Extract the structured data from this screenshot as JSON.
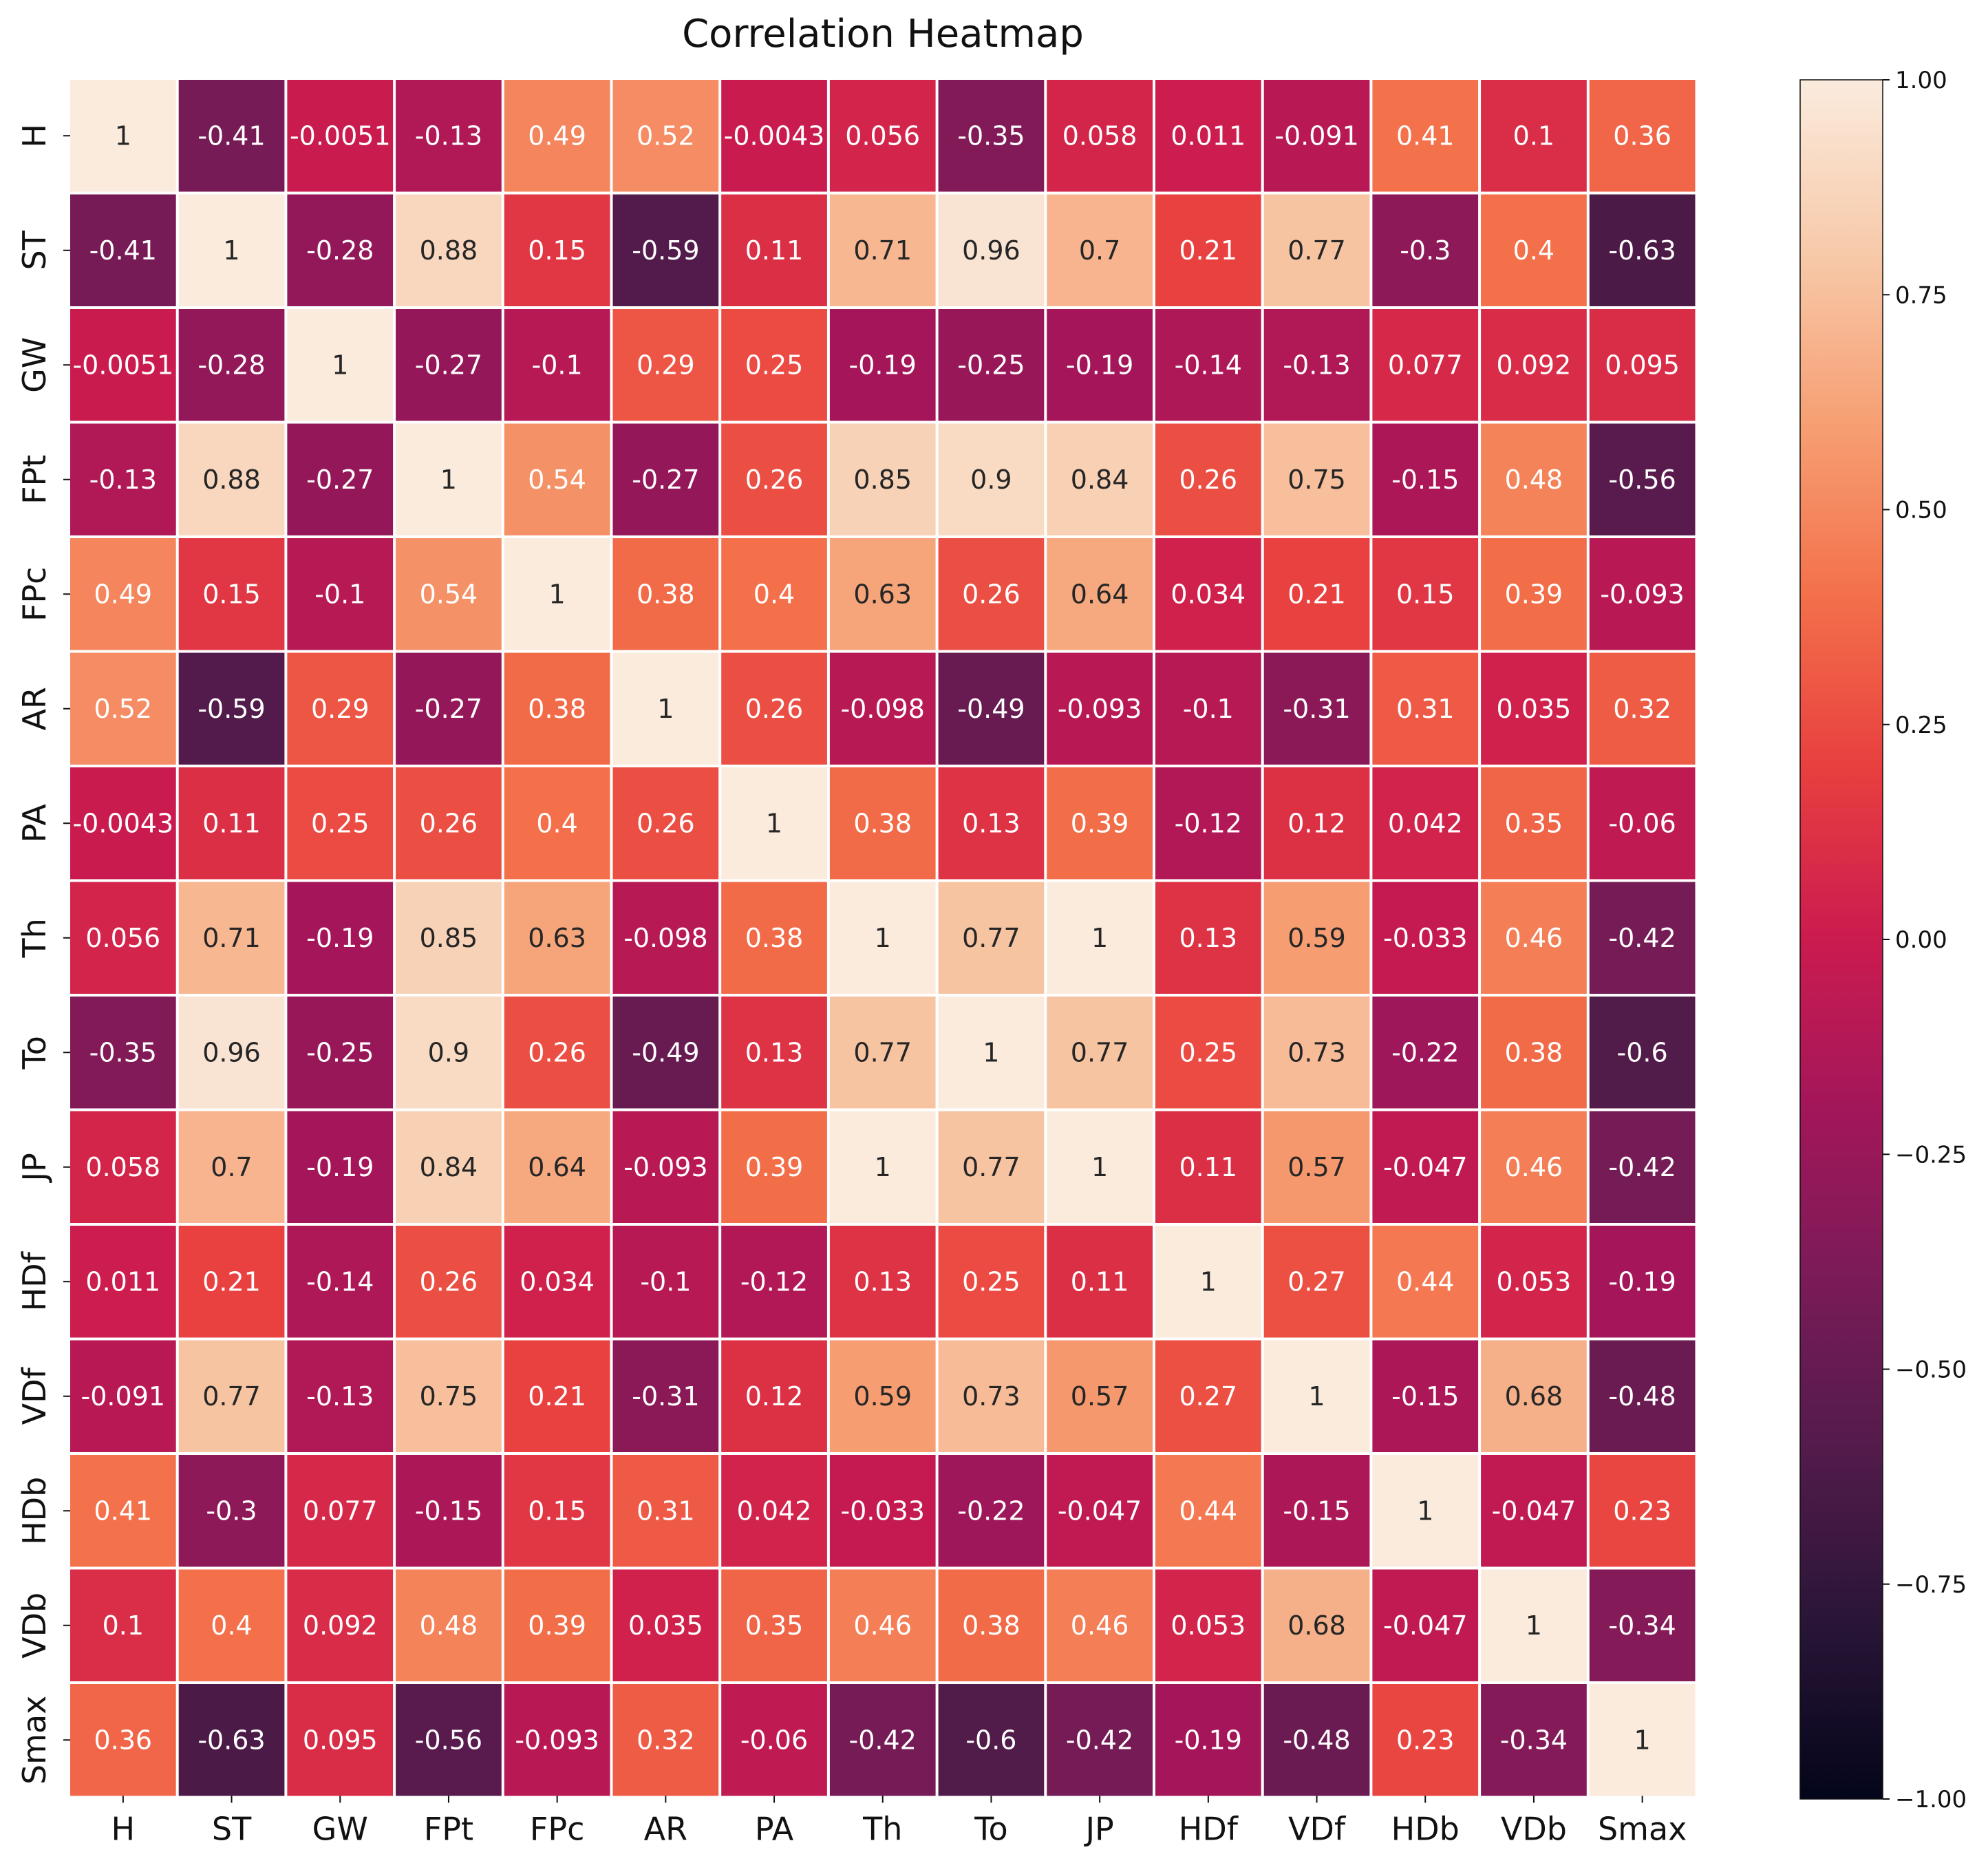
{
  "chart_data": {
    "type": "heatmap",
    "title": "Correlation Heatmap",
    "xlabel": "",
    "ylabel": "",
    "variables": [
      "H",
      "ST",
      "GW",
      "FPt",
      "FPc",
      "AR",
      "PA",
      "Th",
      "To",
      "JP",
      "HDf",
      "VDf",
      "HDb",
      "VDb",
      "Smax"
    ],
    "matrix": [
      [
        1,
        -0.41,
        -0.0051,
        -0.13,
        0.49,
        0.52,
        -0.0043,
        0.056,
        -0.35,
        0.058,
        0.011,
        -0.091,
        0.41,
        0.1,
        0.36
      ],
      [
        -0.41,
        1,
        -0.28,
        0.88,
        0.15,
        -0.59,
        0.11,
        0.71,
        0.96,
        0.7,
        0.21,
        0.77,
        -0.3,
        0.4,
        -0.63
      ],
      [
        -0.0051,
        -0.28,
        1,
        -0.27,
        -0.1,
        0.29,
        0.25,
        -0.19,
        -0.25,
        -0.19,
        -0.14,
        -0.13,
        0.077,
        0.092,
        0.095
      ],
      [
        -0.13,
        0.88,
        -0.27,
        1,
        0.54,
        -0.27,
        0.26,
        0.85,
        0.9,
        0.84,
        0.26,
        0.75,
        -0.15,
        0.48,
        -0.56
      ],
      [
        0.49,
        0.15,
        -0.1,
        0.54,
        1,
        0.38,
        0.4,
        0.63,
        0.26,
        0.64,
        0.034,
        0.21,
        0.15,
        0.39,
        -0.093
      ],
      [
        0.52,
        -0.59,
        0.29,
        -0.27,
        0.38,
        1,
        0.26,
        -0.098,
        -0.49,
        -0.093,
        -0.1,
        -0.31,
        0.31,
        0.035,
        0.32
      ],
      [
        -0.0043,
        0.11,
        0.25,
        0.26,
        0.4,
        0.26,
        1,
        0.38,
        0.13,
        0.39,
        -0.12,
        0.12,
        0.042,
        0.35,
        -0.06
      ],
      [
        0.056,
        0.71,
        -0.19,
        0.85,
        0.63,
        -0.098,
        0.38,
        1,
        0.77,
        1,
        0.13,
        0.59,
        -0.033,
        0.46,
        -0.42
      ],
      [
        -0.35,
        0.96,
        -0.25,
        0.9,
        0.26,
        -0.49,
        0.13,
        0.77,
        1,
        0.77,
        0.25,
        0.73,
        -0.22,
        0.38,
        -0.6
      ],
      [
        0.058,
        0.7,
        -0.19,
        0.84,
        0.64,
        -0.093,
        0.39,
        1,
        0.77,
        1,
        0.11,
        0.57,
        -0.047,
        0.46,
        -0.42
      ],
      [
        0.011,
        0.21,
        -0.14,
        0.26,
        0.034,
        -0.1,
        -0.12,
        0.13,
        0.25,
        0.11,
        1,
        0.27,
        0.44,
        0.053,
        -0.19
      ],
      [
        -0.091,
        0.77,
        -0.13,
        0.75,
        0.21,
        -0.31,
        0.12,
        0.59,
        0.73,
        0.57,
        0.27,
        1,
        -0.15,
        0.68,
        -0.48
      ],
      [
        0.41,
        -0.3,
        0.077,
        -0.15,
        0.15,
        0.31,
        0.042,
        -0.033,
        -0.22,
        -0.047,
        0.44,
        -0.15,
        1,
        -0.047,
        0.23
      ],
      [
        0.1,
        0.4,
        0.092,
        0.48,
        0.39,
        0.035,
        0.35,
        0.46,
        0.38,
        0.46,
        0.053,
        0.68,
        -0.047,
        1,
        -0.34
      ],
      [
        0.36,
        -0.63,
        0.095,
        -0.56,
        -0.093,
        0.32,
        -0.06,
        -0.42,
        -0.6,
        -0.42,
        -0.19,
        -0.48,
        0.23,
        -0.34,
        1
      ]
    ],
    "value_range": [
      -1.0,
      1.0
    ],
    "colormap": "rocket",
    "annotated": true,
    "colorbar": {
      "position": "right",
      "ticks": [
        1.0,
        0.75,
        0.5,
        0.25,
        0.0,
        -0.25,
        -0.5,
        -0.75,
        -1.0
      ],
      "tick_labels": [
        "1.00",
        "0.75",
        "0.50",
        "0.25",
        "0.00",
        "−0.25",
        "−0.50",
        "−0.75",
        "−1.00"
      ]
    },
    "grid": false,
    "legend": "none"
  },
  "colors": {
    "background": "#ffffff",
    "cell_border": "#ffffff",
    "text_dark": "#262626",
    "text_light": "#ffffff",
    "axis": "#111111"
  }
}
